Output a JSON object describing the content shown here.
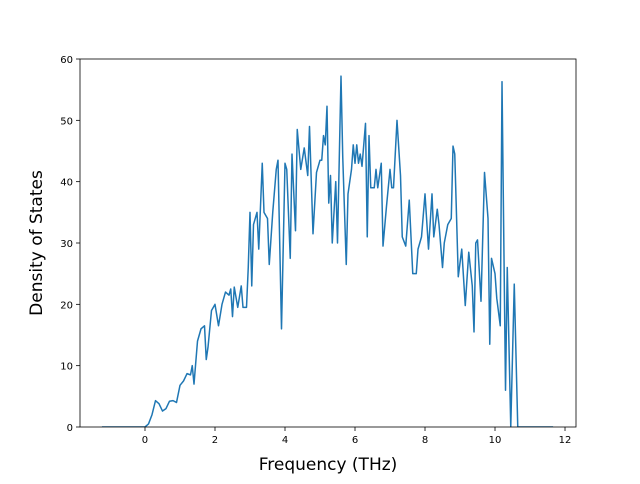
{
  "chart_data": {
    "type": "line",
    "xlabel": "Frequency (THz)",
    "ylabel": "Density of States",
    "color": "#1f77b4",
    "x": [
      -1.23,
      0.0,
      0.1,
      0.2,
      0.3,
      0.4,
      0.5,
      0.6,
      0.7,
      0.8,
      0.9,
      1.0,
      1.1,
      1.2,
      1.3,
      1.35,
      1.4,
      1.45,
      1.5,
      1.6,
      1.7,
      1.75,
      1.8,
      1.9,
      2.0,
      2.1,
      2.2,
      2.3,
      2.4,
      2.45,
      2.5,
      2.55,
      2.65,
      2.75,
      2.8,
      2.9,
      2.95,
      3.0,
      3.05,
      3.1,
      3.2,
      3.25,
      3.35,
      3.4,
      3.5,
      3.55,
      3.65,
      3.75,
      3.8,
      3.9,
      4.0,
      4.05,
      4.15,
      4.2,
      4.3,
      4.35,
      4.45,
      4.55,
      4.65,
      4.7,
      4.8,
      4.9,
      5.0,
      5.05,
      5.1,
      5.15,
      5.2,
      5.25,
      5.3,
      5.35,
      5.45,
      5.5,
      5.6,
      5.65,
      5.75,
      5.8,
      5.9,
      5.95,
      6.0,
      6.05,
      6.1,
      6.15,
      6.2,
      6.3,
      6.35,
      6.4,
      6.45,
      6.55,
      6.6,
      6.65,
      6.75,
      6.8,
      6.9,
      7.0,
      7.05,
      7.1,
      7.2,
      7.3,
      7.35,
      7.45,
      7.55,
      7.65,
      7.75,
      7.8,
      7.9,
      8.0,
      8.1,
      8.2,
      8.25,
      8.35,
      8.4,
      8.5,
      8.55,
      8.65,
      8.75,
      8.8,
      8.85,
      8.95,
      9.05,
      9.15,
      9.25,
      9.35,
      9.4,
      9.45,
      9.5,
      9.6,
      9.7,
      9.8,
      9.85,
      9.9,
      10.0,
      10.05,
      10.15,
      10.2,
      10.3,
      10.35,
      10.45,
      10.55,
      10.65,
      11.66
    ],
    "values": [
      0,
      0,
      0.5,
      2,
      4.3,
      3.8,
      2.6,
      3.0,
      4.2,
      4.3,
      4.0,
      6.8,
      7.5,
      8.7,
      8.5,
      10,
      7.0,
      10.5,
      14,
      16,
      16.5,
      11,
      13,
      19,
      20,
      16.5,
      20,
      22,
      21.5,
      22.5,
      18,
      22.8,
      19.5,
      23,
      19.5,
      19.5,
      26,
      35,
      23,
      33,
      35,
      29,
      43,
      35,
      34,
      26.5,
      35,
      42,
      43.5,
      16,
      43,
      42,
      27.5,
      44.5,
      32,
      48.5,
      42,
      45.5,
      41,
      49,
      31.5,
      41.5,
      43.5,
      43.5,
      47.5,
      46,
      52.3,
      36.5,
      41,
      30,
      40,
      30,
      57.2,
      44,
      26.5,
      38,
      42,
      46,
      43,
      46,
      43,
      44.5,
      42.5,
      49.5,
      31,
      47.5,
      39,
      39,
      42,
      39,
      43,
      29.5,
      36,
      42,
      39,
      39,
      50,
      41,
      31,
      29.5,
      37,
      25,
      25,
      29,
      31,
      38,
      29,
      38,
      31,
      35.5,
      33,
      26,
      30,
      33,
      34,
      45.8,
      44.5,
      24.5,
      29,
      19.8,
      28.5,
      23,
      15.5,
      30,
      30.5,
      20.5,
      41.5,
      34,
      13.5,
      27.5,
      25,
      21,
      16.5,
      56.3,
      6,
      26,
      0,
      23.3,
      0,
      0
    ],
    "xlim": [
      -1.857,
      12.314
    ],
    "ylim": [
      0,
      60
    ],
    "xticks": [
      0,
      2,
      4,
      6,
      8,
      10,
      12
    ],
    "yticks": [
      0,
      10,
      20,
      30,
      40,
      50,
      60
    ]
  }
}
